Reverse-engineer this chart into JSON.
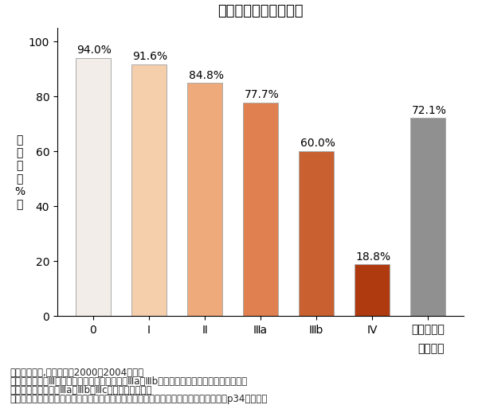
{
  "title": "大腸がんの５年生存率",
  "categories": [
    "0",
    "I",
    "Ⅱ",
    "Ⅲa",
    "Ⅲb",
    "IV",
    "全ステージ"
  ],
  "values": [
    94.0,
    91.6,
    84.8,
    77.7,
    60.0,
    18.8,
    72.1
  ],
  "labels": [
    "94.0%",
    "91.6%",
    "84.8%",
    "77.7%",
    "60.0%",
    "18.8%",
    "72.1%"
  ],
  "bar_colors": [
    "#f2ede8",
    "#f5ceac",
    "#eeaa7a",
    "#e08050",
    "#c86030",
    "#b03a10",
    "#909090"
  ],
  "ylabel_chars": [
    "生",
    "存",
    "率",
    "（",
    "%",
    "）"
  ],
  "xlabel_bottom": "ステージ",
  "ylim": [
    0,
    105
  ],
  "yticks": [
    0,
    20,
    40,
    60,
    80,
    100
  ],
  "footer_lines": [
    "大腸癌研究会,全国登録　2000～2004年症例",
    "（注）ステージⅢはリンパ節への転移の状態でⅢaとⅢbに分けられる（調査当時の分類。現",
    "在ではより細かく、Ⅲa、Ⅲb、Ⅲcに分けられる）。",
    "雑賀智也（著）・高橋慶一（監修）『大腸がん　最新標準治療とセカンドオピニオン』p34より転載"
  ],
  "bar_edgecolor": "#aaaaaa",
  "title_fontsize": 13,
  "label_fontsize": 10,
  "tick_fontsize": 10,
  "footer_fontsize": 8.5
}
